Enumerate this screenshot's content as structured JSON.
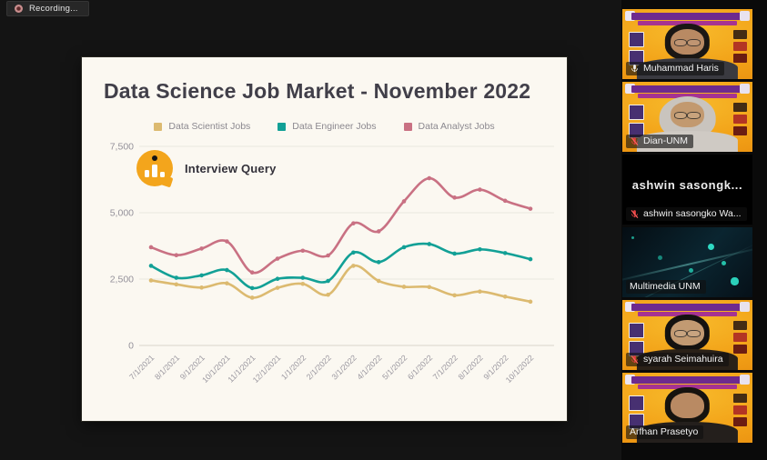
{
  "recording": {
    "label": "Recording..."
  },
  "slide": {
    "title": "Data Science Job Market - November 2022",
    "logo_text": "Interview Query"
  },
  "chart_data": {
    "type": "line",
    "title": "Data Science Job Market - November 2022",
    "x": [
      "7/1/2021",
      "8/1/2021",
      "9/1/2021",
      "10/1/2021",
      "11/1/2021",
      "12/1/2021",
      "1/1/2022",
      "2/1/2022",
      "3/1/2022",
      "4/1/2022",
      "5/1/2022",
      "6/1/2022",
      "7/1/2022",
      "8/1/2022",
      "9/1/2022",
      "10/1/2022"
    ],
    "series": [
      {
        "name": "Data Scientist Jobs",
        "color": "#dcba70",
        "values": [
          2450,
          2300,
          2180,
          2340,
          1800,
          2170,
          2320,
          1910,
          3000,
          2430,
          2210,
          2200,
          1890,
          2030,
          1840,
          1650
        ]
      },
      {
        "name": "Data Engineer Jobs",
        "color": "#12a096",
        "values": [
          3000,
          2550,
          2640,
          2840,
          2160,
          2510,
          2550,
          2430,
          3500,
          3140,
          3700,
          3820,
          3460,
          3620,
          3480,
          3250
        ]
      },
      {
        "name": "Data Analyst Jobs",
        "color": "#c97183",
        "values": [
          3700,
          3400,
          3650,
          3920,
          2750,
          3270,
          3570,
          3390,
          4600,
          4300,
          5430,
          6300,
          5570,
          5870,
          5450,
          5150
        ]
      }
    ],
    "xlabel": "",
    "ylabel": "",
    "ylim": [
      0,
      7500
    ],
    "yticks": [
      0,
      2500,
      5000,
      7500
    ],
    "ytick_labels": [
      "0",
      "2,500",
      "5,000",
      "7,500"
    ],
    "grid": true,
    "legend_position": "top"
  },
  "colors": {
    "active_speaker_border": "#c9ae2d",
    "muted_mic_red": "#e03c3c",
    "poster_orange": "#f2a117",
    "poster_banner_purple": "#6e2a8e",
    "logo_orange": "#f3a51c"
  },
  "sidebar": {
    "participants": [
      {
        "name": "Muhammad Haris",
        "mic": "on",
        "bg": "poster",
        "active": true,
        "person": {
          "hair": "#1a1714",
          "skin": "#b98a63",
          "shirt": "#3a3a40",
          "glasses": true,
          "head_cover": false
        }
      },
      {
        "name": "Dian-UNM",
        "mic": "muted",
        "bg": "poster",
        "active": false,
        "person": {
          "hair": "#c9c4be",
          "skin": "#c2996f",
          "shirt": "#cfcac4",
          "glasses": true,
          "head_cover": true
        }
      },
      {
        "name": "ashwin sasongko Wa...",
        "mic": "muted",
        "bg": "text",
        "active": false,
        "display_text": "ashwin  sasongk..."
      },
      {
        "name": "Multimedia UNM",
        "mic": "none",
        "bg": "tech",
        "active": false
      },
      {
        "name": "syarah Seimahuira",
        "mic": "muted",
        "bg": "poster",
        "active": false,
        "person": {
          "hair": "#141210",
          "skin": "#c29a72",
          "shirt": "#2a2118",
          "glasses": true,
          "head_cover": false
        }
      },
      {
        "name": "Arfhan Prasetyo",
        "mic": "none",
        "bg": "poster",
        "active": false,
        "person": {
          "hair": "#16130f",
          "skin": "#b98a63",
          "shirt": "#241f1c",
          "glasses": false,
          "head_cover": false
        }
      }
    ]
  }
}
